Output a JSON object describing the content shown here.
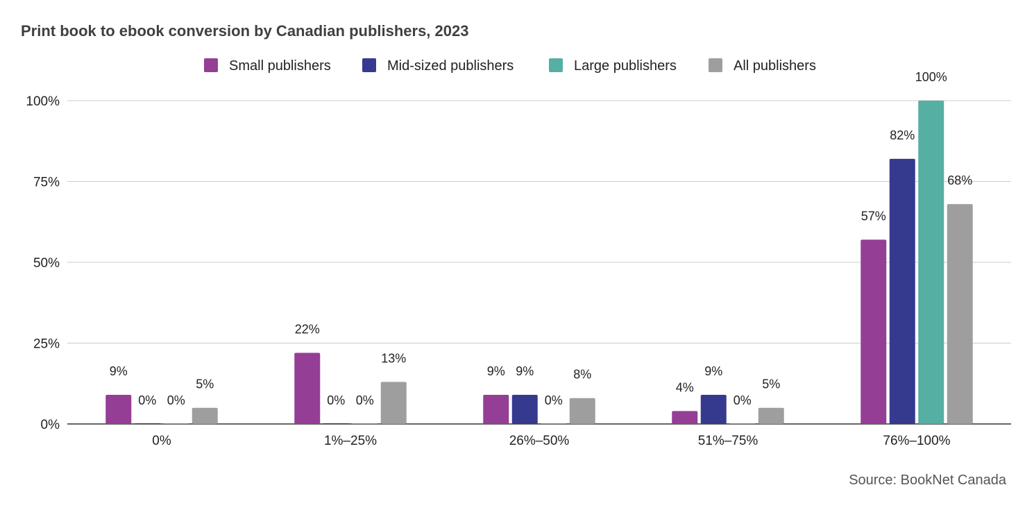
{
  "chart_data": {
    "type": "bar",
    "title": "Print book to ebook conversion by Canadian publishers, 2023",
    "categories": [
      "0%",
      "1%–25%",
      "26%–50%",
      "51%–75%",
      "76%–100%"
    ],
    "series": [
      {
        "name": "Small publishers",
        "color": "#953e96",
        "values": [
          9,
          22,
          9,
          4,
          57
        ],
        "labels": [
          "9%",
          "22%",
          "9%",
          "4%",
          "57%"
        ]
      },
      {
        "name": "Mid-sized publishers",
        "color": "#363a8f",
        "values": [
          0,
          0,
          9,
          9,
          82
        ],
        "labels": [
          "0%",
          "0%",
          "9%",
          "9%",
          "82%"
        ]
      },
      {
        "name": "Large publishers",
        "color": "#55afa3",
        "values": [
          0,
          0,
          0,
          0,
          100
        ],
        "labels": [
          "0%",
          "0%",
          "0%",
          "0%",
          "100%"
        ]
      },
      {
        "name": "All publishers",
        "color": "#9e9e9e",
        "values": [
          5,
          13,
          8,
          5,
          68
        ],
        "labels": [
          "5%",
          "13%",
          "8%",
          "5%",
          "68%"
        ]
      }
    ],
    "ylim": [
      0,
      100
    ],
    "yticks": [
      "0%",
      "25%",
      "50%",
      "75%",
      "100%"
    ],
    "ytick_values": [
      0,
      25,
      50,
      75,
      100
    ],
    "xlabel": "",
    "ylabel": "",
    "grid": true,
    "legend_position": "top-center",
    "source": "Source: BookNet Canada"
  }
}
